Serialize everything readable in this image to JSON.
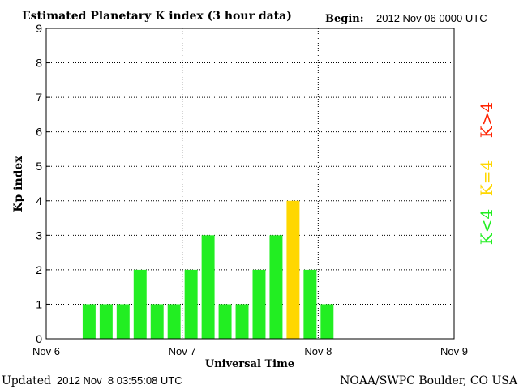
{
  "chart_data": {
    "type": "bar",
    "title": "Estimated Planetary K index (3 hour data)",
    "begin_label": "Begin:",
    "begin_value": "2012 Nov 06 0000 UTC",
    "xlabel": "Universal Time",
    "ylabel": "Kp index",
    "ylim": [
      0,
      9
    ],
    "yticks": [
      "0",
      "1",
      "2",
      "3",
      "4",
      "5",
      "6",
      "7",
      "8",
      "9"
    ],
    "xticks": [
      "Nov 6",
      "Nov 7",
      "Nov 8",
      "Nov 9"
    ],
    "slots_per_day": 8,
    "grid": true,
    "values": [
      null,
      null,
      1,
      1,
      1,
      2,
      1,
      1,
      2,
      3,
      1,
      1,
      2,
      3,
      4,
      2,
      1,
      null,
      null,
      null,
      null,
      null,
      null,
      null
    ],
    "colors": {
      "low": "#22ee22",
      "equal": "#ffd700",
      "high": "#ff2200"
    },
    "legend": [
      {
        "label": "K<4",
        "color": "#22ee22"
      },
      {
        "label": "K=4",
        "color": "#ffd700"
      },
      {
        "label": "K>4",
        "color": "#ff2200"
      }
    ],
    "legend_placement": "right"
  },
  "footer": {
    "updated_label": "Updated",
    "updated_value": "2012 Nov  8 03:55:08 UTC",
    "source": "NOAA/SWPC Boulder, CO USA"
  }
}
